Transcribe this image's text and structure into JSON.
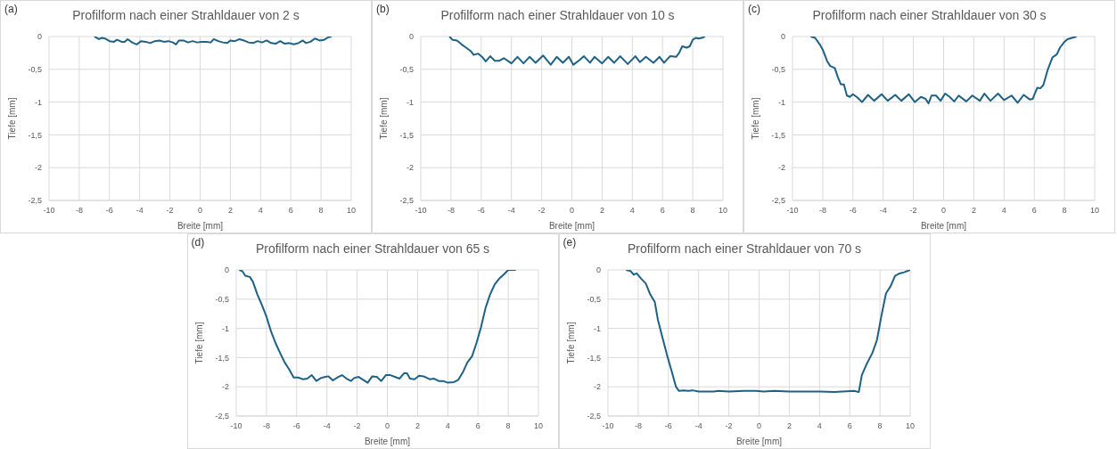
{
  "chart_data": [
    {
      "type": "line",
      "title": "Profilform nach einer Strahldauer von 2 s",
      "xlabel": "Breite [mm]",
      "ylabel": "Tiefe [mm]",
      "annotations": [
        "(a)"
      ],
      "color": "#1d6184",
      "grid": true,
      "xlim": [
        -10,
        10
      ],
      "ylim": [
        -2.5,
        0
      ],
      "xticks": [
        -10,
        -8,
        -6,
        -4,
        -2,
        0,
        2,
        4,
        6,
        8,
        10
      ],
      "yticks": [
        {
          "value": -2.5,
          "label": "-2,5"
        },
        -2,
        {
          "value": -1.5,
          "label": "-1,5"
        },
        -1,
        {
          "value": -0.5,
          "label": "-0,5"
        },
        0
      ],
      "x": [
        -7,
        -6.7,
        -6.5,
        -6.3,
        -6,
        -5.7,
        -5.5,
        -5.2,
        -5,
        -4.8,
        -4.5,
        -4.2,
        -3.9,
        -3.6,
        -3.3,
        -3,
        -2.7,
        -2.4,
        -2.1,
        -1.8,
        -1.6,
        -1.4,
        -1.1,
        -0.8,
        -0.5,
        -0.2,
        0.1,
        0.4,
        0.7,
        0.9,
        1.2,
        1.5,
        1.8,
        2,
        2.3,
        2.6,
        2.9,
        3.2,
        3.5,
        3.8,
        4.1,
        4.4,
        4.7,
        5,
        5.3,
        5.6,
        5.9,
        6.2,
        6.5,
        6.8,
        7,
        7.3,
        7.6,
        7.9,
        8.2,
        8.5,
        8.7
      ],
      "values": [
        0,
        -0.04,
        -0.02,
        -0.03,
        -0.07,
        -0.08,
        -0.05,
        -0.08,
        -0.08,
        -0.04,
        -0.09,
        -0.12,
        -0.07,
        -0.08,
        -0.1,
        -0.07,
        -0.06,
        -0.08,
        -0.07,
        -0.09,
        -0.12,
        -0.06,
        -0.06,
        -0.09,
        -0.07,
        -0.09,
        -0.08,
        -0.08,
        -0.09,
        -0.04,
        -0.07,
        -0.09,
        -0.1,
        -0.06,
        -0.07,
        -0.04,
        -0.06,
        -0.09,
        -0.1,
        -0.07,
        -0.09,
        -0.06,
        -0.1,
        -0.11,
        -0.07,
        -0.11,
        -0.1,
        -0.12,
        -0.1,
        -0.06,
        -0.1,
        -0.08,
        -0.03,
        -0.06,
        -0.05,
        -0.01,
        0
      ]
    },
    {
      "type": "line",
      "title": "Profilform nach einer Strahldauer von 10 s",
      "xlabel": "Breite [mm]",
      "ylabel": "Tiefe [mm]",
      "annotations": [
        "(b)"
      ],
      "color": "#1d6184",
      "grid": true,
      "xlim": [
        -10,
        10
      ],
      "ylim": [
        -2.5,
        0
      ],
      "xticks": [
        -10,
        -8,
        -6,
        -4,
        -2,
        0,
        2,
        4,
        6,
        8,
        10
      ],
      "yticks": [
        {
          "value": -2.5,
          "label": "-2,5"
        },
        -2,
        {
          "value": -1.5,
          "label": "-1,5"
        },
        -1,
        {
          "value": -0.5,
          "label": "-0,5"
        },
        0
      ],
      "x": [
        -8.1,
        -7.9,
        -7.6,
        -7.3,
        -7,
        -6.7,
        -6.5,
        -6.2,
        -5.9,
        -5.7,
        -5.4,
        -5.1,
        -4.8,
        -4.5,
        -4,
        -3.6,
        -3.2,
        -2.8,
        -2.4,
        -1.9,
        -1.4,
        -1,
        -0.6,
        -0.2,
        0.1,
        0.5,
        0.8,
        1.2,
        1.5,
        2,
        2.4,
        2.8,
        3.2,
        3.7,
        4.2,
        4.5,
        4.9,
        5.4,
        5.8,
        6.1,
        6.5,
        6.9,
        7.1,
        7.3,
        7.6,
        7.8,
        8,
        8.2,
        8.4,
        8.6,
        8.8
      ],
      "values": [
        0,
        -0.05,
        -0.06,
        -0.12,
        -0.17,
        -0.22,
        -0.28,
        -0.26,
        -0.32,
        -0.38,
        -0.3,
        -0.37,
        -0.37,
        -0.33,
        -0.41,
        -0.31,
        -0.41,
        -0.31,
        -0.4,
        -0.29,
        -0.43,
        -0.31,
        -0.4,
        -0.31,
        -0.43,
        -0.36,
        -0.3,
        -0.4,
        -0.31,
        -0.41,
        -0.31,
        -0.4,
        -0.3,
        -0.42,
        -0.3,
        -0.39,
        -0.31,
        -0.4,
        -0.31,
        -0.4,
        -0.3,
        -0.31,
        -0.25,
        -0.15,
        -0.17,
        -0.15,
        -0.05,
        -0.02,
        -0.03,
        -0.02,
        0
      ]
    },
    {
      "type": "line",
      "title": "Profilform nach einer Strahldauer von 30 s",
      "xlabel": "Breite [mm]",
      "ylabel": "Tiefe [mm]",
      "annotations": [
        "(c)"
      ],
      "color": "#1d6184",
      "grid": true,
      "xlim": [
        -10,
        10
      ],
      "ylim": [
        -2.5,
        0
      ],
      "xticks": [
        -10,
        -8,
        -6,
        -4,
        -2,
        0,
        2,
        4,
        6,
        8,
        10
      ],
      "yticks": [
        {
          "value": -2.5,
          "label": "-2,5"
        },
        -2,
        {
          "value": -1.5,
          "label": "-1,5"
        },
        -1,
        {
          "value": -0.5,
          "label": "-0,5"
        },
        0
      ],
      "x": [
        -8.8,
        -8.5,
        -8.2,
        -8,
        -7.7,
        -7.5,
        -7.2,
        -7,
        -6.8,
        -6.6,
        -6.4,
        -6.2,
        -6,
        -5.7,
        -5.4,
        -5,
        -4.6,
        -4.1,
        -3.7,
        -3.2,
        -2.8,
        -2.3,
        -1.9,
        -1.5,
        -1.2,
        -1,
        -0.8,
        -0.5,
        -0.2,
        0.1,
        0.4,
        0.7,
        1,
        1.5,
        1.9,
        2.4,
        2.7,
        3.1,
        3.6,
        4,
        4.5,
        4.9,
        5.3,
        5.7,
        5.9,
        6.2,
        6.4,
        6.6,
        6.9,
        7.2,
        7.5,
        7.7,
        8,
        8.2,
        8.5,
        8.8
      ],
      "values": [
        0,
        -0.02,
        -0.12,
        -0.2,
        -0.38,
        -0.45,
        -0.48,
        -0.62,
        -0.73,
        -0.73,
        -0.9,
        -0.92,
        -0.88,
        -0.93,
        -1,
        -0.89,
        -0.98,
        -0.88,
        -0.98,
        -0.89,
        -0.98,
        -0.88,
        -1,
        -0.92,
        -0.95,
        -1.02,
        -0.9,
        -0.9,
        -0.98,
        -0.87,
        -0.92,
        -0.99,
        -0.9,
        -0.99,
        -0.9,
        -0.98,
        -0.87,
        -0.98,
        -0.87,
        -0.97,
        -0.9,
        -1.01,
        -0.89,
        -0.96,
        -0.95,
        -0.78,
        -0.79,
        -0.74,
        -0.5,
        -0.32,
        -0.27,
        -0.17,
        -0.08,
        -0.04,
        -0.02,
        0
      ]
    },
    {
      "type": "line",
      "title": "Profilform nach einer Strahldauer von 65 s",
      "xlabel": "Breite [mm]",
      "ylabel": "Tiefe [mm]",
      "annotations": [
        "(d)"
      ],
      "color": "#1d6184",
      "grid": true,
      "xlim": [
        -10,
        10
      ],
      "ylim": [
        -2.5,
        0
      ],
      "xticks": [
        -10,
        -8,
        -6,
        -4,
        -2,
        0,
        2,
        4,
        6,
        8,
        10
      ],
      "yticks": [
        {
          "value": -2.5,
          "label": "-2,5"
        },
        -2,
        {
          "value": -1.5,
          "label": "-1,5"
        },
        -1,
        {
          "value": -0.5,
          "label": "-0,5"
        },
        0
      ],
      "x": [
        -9.8,
        -9.6,
        -9.4,
        -9.1,
        -8.9,
        -8.6,
        -8.3,
        -8,
        -7.7,
        -7.4,
        -7.1,
        -6.8,
        -6.5,
        -6.2,
        -5.9,
        -5.6,
        -5.3,
        -5,
        -4.7,
        -4.4,
        -4.1,
        -3.9,
        -3.6,
        -3.3,
        -3,
        -2.7,
        -2.4,
        -2.2,
        -1.9,
        -1.6,
        -1.3,
        -1,
        -0.7,
        -0.4,
        -0.1,
        0.2,
        0.5,
        0.8,
        1.1,
        1.3,
        1.5,
        1.8,
        2.1,
        2.4,
        2.8,
        3.1,
        3.4,
        3.7,
        4,
        4.4,
        4.7,
        5,
        5.3,
        5.6,
        5.9,
        6.2,
        6.5,
        6.8,
        7.1,
        7.4,
        7.7,
        8,
        8.5
      ],
      "values": [
        0,
        -0.02,
        -0.1,
        -0.12,
        -0.2,
        -0.42,
        -0.6,
        -0.8,
        -1.05,
        -1.25,
        -1.42,
        -1.58,
        -1.7,
        -1.84,
        -1.84,
        -1.87,
        -1.86,
        -1.8,
        -1.9,
        -1.85,
        -1.83,
        -1.82,
        -1.89,
        -1.84,
        -1.8,
        -1.86,
        -1.9,
        -1.85,
        -1.83,
        -1.88,
        -1.93,
        -1.82,
        -1.83,
        -1.9,
        -1.8,
        -1.8,
        -1.83,
        -1.86,
        -1.77,
        -1.77,
        -1.86,
        -1.87,
        -1.81,
        -1.82,
        -1.87,
        -1.86,
        -1.9,
        -1.9,
        -1.93,
        -1.92,
        -1.88,
        -1.75,
        -1.58,
        -1.48,
        -1.25,
        -0.98,
        -0.65,
        -0.42,
        -0.25,
        -0.15,
        -0.08,
        0,
        0
      ]
    },
    {
      "type": "line",
      "title": "Profilform nach einer Strahldauer von 70 s",
      "xlabel": "Breite [mm]",
      "ylabel": "Tiefe [mm]",
      "annotations": [
        "(e)"
      ],
      "color": "#1d6184",
      "grid": true,
      "xlim": [
        -10,
        10
      ],
      "ylim": [
        -2.5,
        0
      ],
      "xticks": [
        -10,
        -8,
        -6,
        -4,
        -2,
        0,
        2,
        4,
        6,
        8,
        10
      ],
      "yticks": [
        {
          "value": -2.5,
          "label": "-2,5"
        },
        -2,
        {
          "value": -1.5,
          "label": "-1,5"
        },
        -1,
        {
          "value": -0.5,
          "label": "-0,5"
        },
        0
      ],
      "x": [
        -8.8,
        -8.5,
        -8.3,
        -8.1,
        -7.8,
        -7.5,
        -7.2,
        -6.9,
        -6.7,
        -6.4,
        -6.1,
        -5.8,
        -5.5,
        -5.3,
        -5,
        -4.7,
        -4.4,
        -4,
        -3,
        -2.7,
        -2,
        -1,
        -0.2,
        0.3,
        1,
        2,
        3,
        4,
        5,
        5.5,
        6.3,
        6.6,
        6.8,
        7.1,
        7.5,
        7.8,
        8.1,
        8.4,
        8.7,
        9,
        9.3,
        9.6,
        10
      ],
      "values": [
        0,
        -0.02,
        -0.08,
        -0.06,
        -0.15,
        -0.23,
        -0.42,
        -0.55,
        -0.85,
        -1.15,
        -1.45,
        -1.72,
        -2,
        -2.07,
        -2.06,
        -2.07,
        -2.06,
        -2.08,
        -2.08,
        -2.07,
        -2.08,
        -2.07,
        -2.07,
        -2.08,
        -2.07,
        -2.08,
        -2.08,
        -2.08,
        -2.09,
        -2.08,
        -2.07,
        -2.09,
        -1.8,
        -1.62,
        -1.42,
        -1.2,
        -0.78,
        -0.4,
        -0.28,
        -0.1,
        -0.06,
        -0.04,
        0
      ]
    }
  ]
}
